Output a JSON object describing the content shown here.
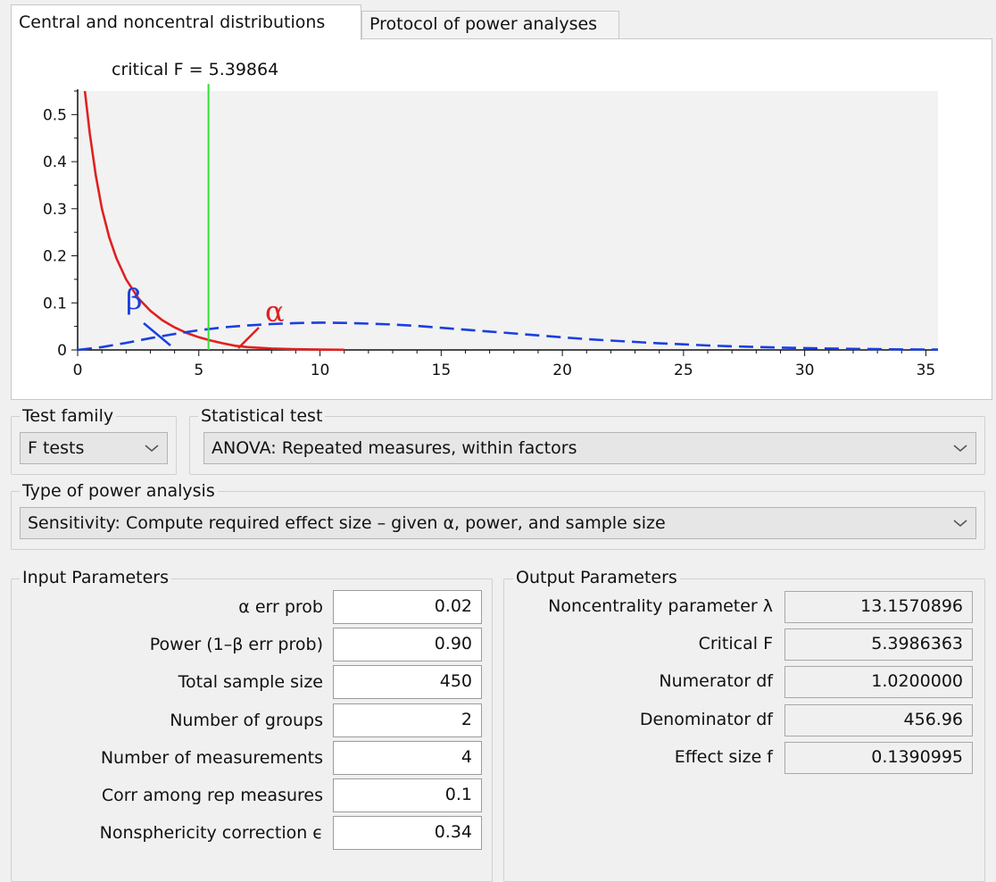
{
  "tabs": [
    {
      "label": "Central and noncentral distributions",
      "active": true
    },
    {
      "label": "Protocol of power analyses",
      "active": false
    }
  ],
  "plot": {
    "critical_label": "critical F =  5.39864",
    "beta_label": "β",
    "alpha_label": "α"
  },
  "chart_data": {
    "type": "line",
    "title": "",
    "xlabel": "",
    "ylabel": "",
    "xlim": [
      0,
      35.5
    ],
    "ylim": [
      0,
      0.55
    ],
    "x_ticks": [
      0,
      5,
      10,
      15,
      20,
      25,
      30,
      35
    ],
    "y_ticks": [
      0,
      0.1,
      0.2,
      0.3,
      0.4,
      0.5
    ],
    "critical_x": 5.39864,
    "series": [
      {
        "color": "#e02020",
        "style": "solid",
        "points": [
          [
            0.3,
            0.55
          ],
          [
            0.5,
            0.46
          ],
          [
            0.75,
            0.37
          ],
          [
            1.0,
            0.3
          ],
          [
            1.3,
            0.24
          ],
          [
            1.6,
            0.195
          ],
          [
            2.0,
            0.15
          ],
          [
            2.5,
            0.11
          ],
          [
            3.0,
            0.083
          ],
          [
            3.5,
            0.063
          ],
          [
            4.0,
            0.048
          ],
          [
            4.5,
            0.036
          ],
          [
            5.0,
            0.027
          ],
          [
            5.5,
            0.02
          ],
          [
            6.0,
            0.014
          ],
          [
            6.5,
            0.009
          ],
          [
            7.0,
            0.006
          ],
          [
            8.0,
            0.003
          ],
          [
            9.0,
            0.0015
          ],
          [
            10.0,
            0.0008
          ],
          [
            11.0,
            0.0003
          ]
        ]
      },
      {
        "color": "#1a3fe0",
        "style": "dashed",
        "points": [
          [
            0,
            0
          ],
          [
            1,
            0.006
          ],
          [
            2,
            0.015
          ],
          [
            3,
            0.025
          ],
          [
            4,
            0.034
          ],
          [
            5,
            0.042
          ],
          [
            6,
            0.048
          ],
          [
            7,
            0.052
          ],
          [
            8,
            0.055
          ],
          [
            9,
            0.057
          ],
          [
            10,
            0.058
          ],
          [
            11,
            0.0575
          ],
          [
            12,
            0.056
          ],
          [
            13,
            0.054
          ],
          [
            14,
            0.051
          ],
          [
            15,
            0.047
          ],
          [
            16,
            0.043
          ],
          [
            17,
            0.039
          ],
          [
            18,
            0.035
          ],
          [
            19,
            0.031
          ],
          [
            20,
            0.027
          ],
          [
            21,
            0.023
          ],
          [
            22,
            0.02
          ],
          [
            23,
            0.017
          ],
          [
            24,
            0.014
          ],
          [
            25,
            0.012
          ],
          [
            26,
            0.0095
          ],
          [
            27,
            0.0078
          ],
          [
            28,
            0.0062
          ],
          [
            29,
            0.005
          ],
          [
            30,
            0.004
          ],
          [
            31,
            0.003
          ],
          [
            32,
            0.0023
          ],
          [
            33,
            0.0017
          ],
          [
            34,
            0.0012
          ],
          [
            35,
            0.0009
          ],
          [
            35.5,
            0.0008
          ]
        ]
      }
    ]
  },
  "test_family": {
    "title": "Test family",
    "value": "F tests"
  },
  "statistical_test": {
    "title": "Statistical test",
    "value": "ANOVA: Repeated measures, within factors"
  },
  "power_analysis": {
    "title": "Type of power analysis",
    "value": "Sensitivity: Compute required effect size – given α, power, and sample size"
  },
  "input": {
    "title": "Input Parameters",
    "params": [
      {
        "label": "α err prob",
        "value": "0.02"
      },
      {
        "label": "Power (1–β err prob)",
        "value": "0.90"
      },
      {
        "label": "Total sample size",
        "value": "450"
      },
      {
        "label": "Number of groups",
        "value": "2"
      },
      {
        "label": "Number of measurements",
        "value": "4"
      },
      {
        "label": "Corr among rep measures",
        "value": "0.1"
      },
      {
        "label": "Nonsphericity correction ϵ",
        "value": "0.34"
      }
    ]
  },
  "output": {
    "title": "Output Parameters",
    "params": [
      {
        "label": "Noncentrality parameter λ",
        "value": "13.1570896"
      },
      {
        "label": "Critical F",
        "value": "5.3986363"
      },
      {
        "label": "Numerator df",
        "value": "1.0200000"
      },
      {
        "label": "Denominator df",
        "value": "456.96"
      },
      {
        "label": "Effect size f",
        "value": "0.1390995"
      }
    ]
  }
}
